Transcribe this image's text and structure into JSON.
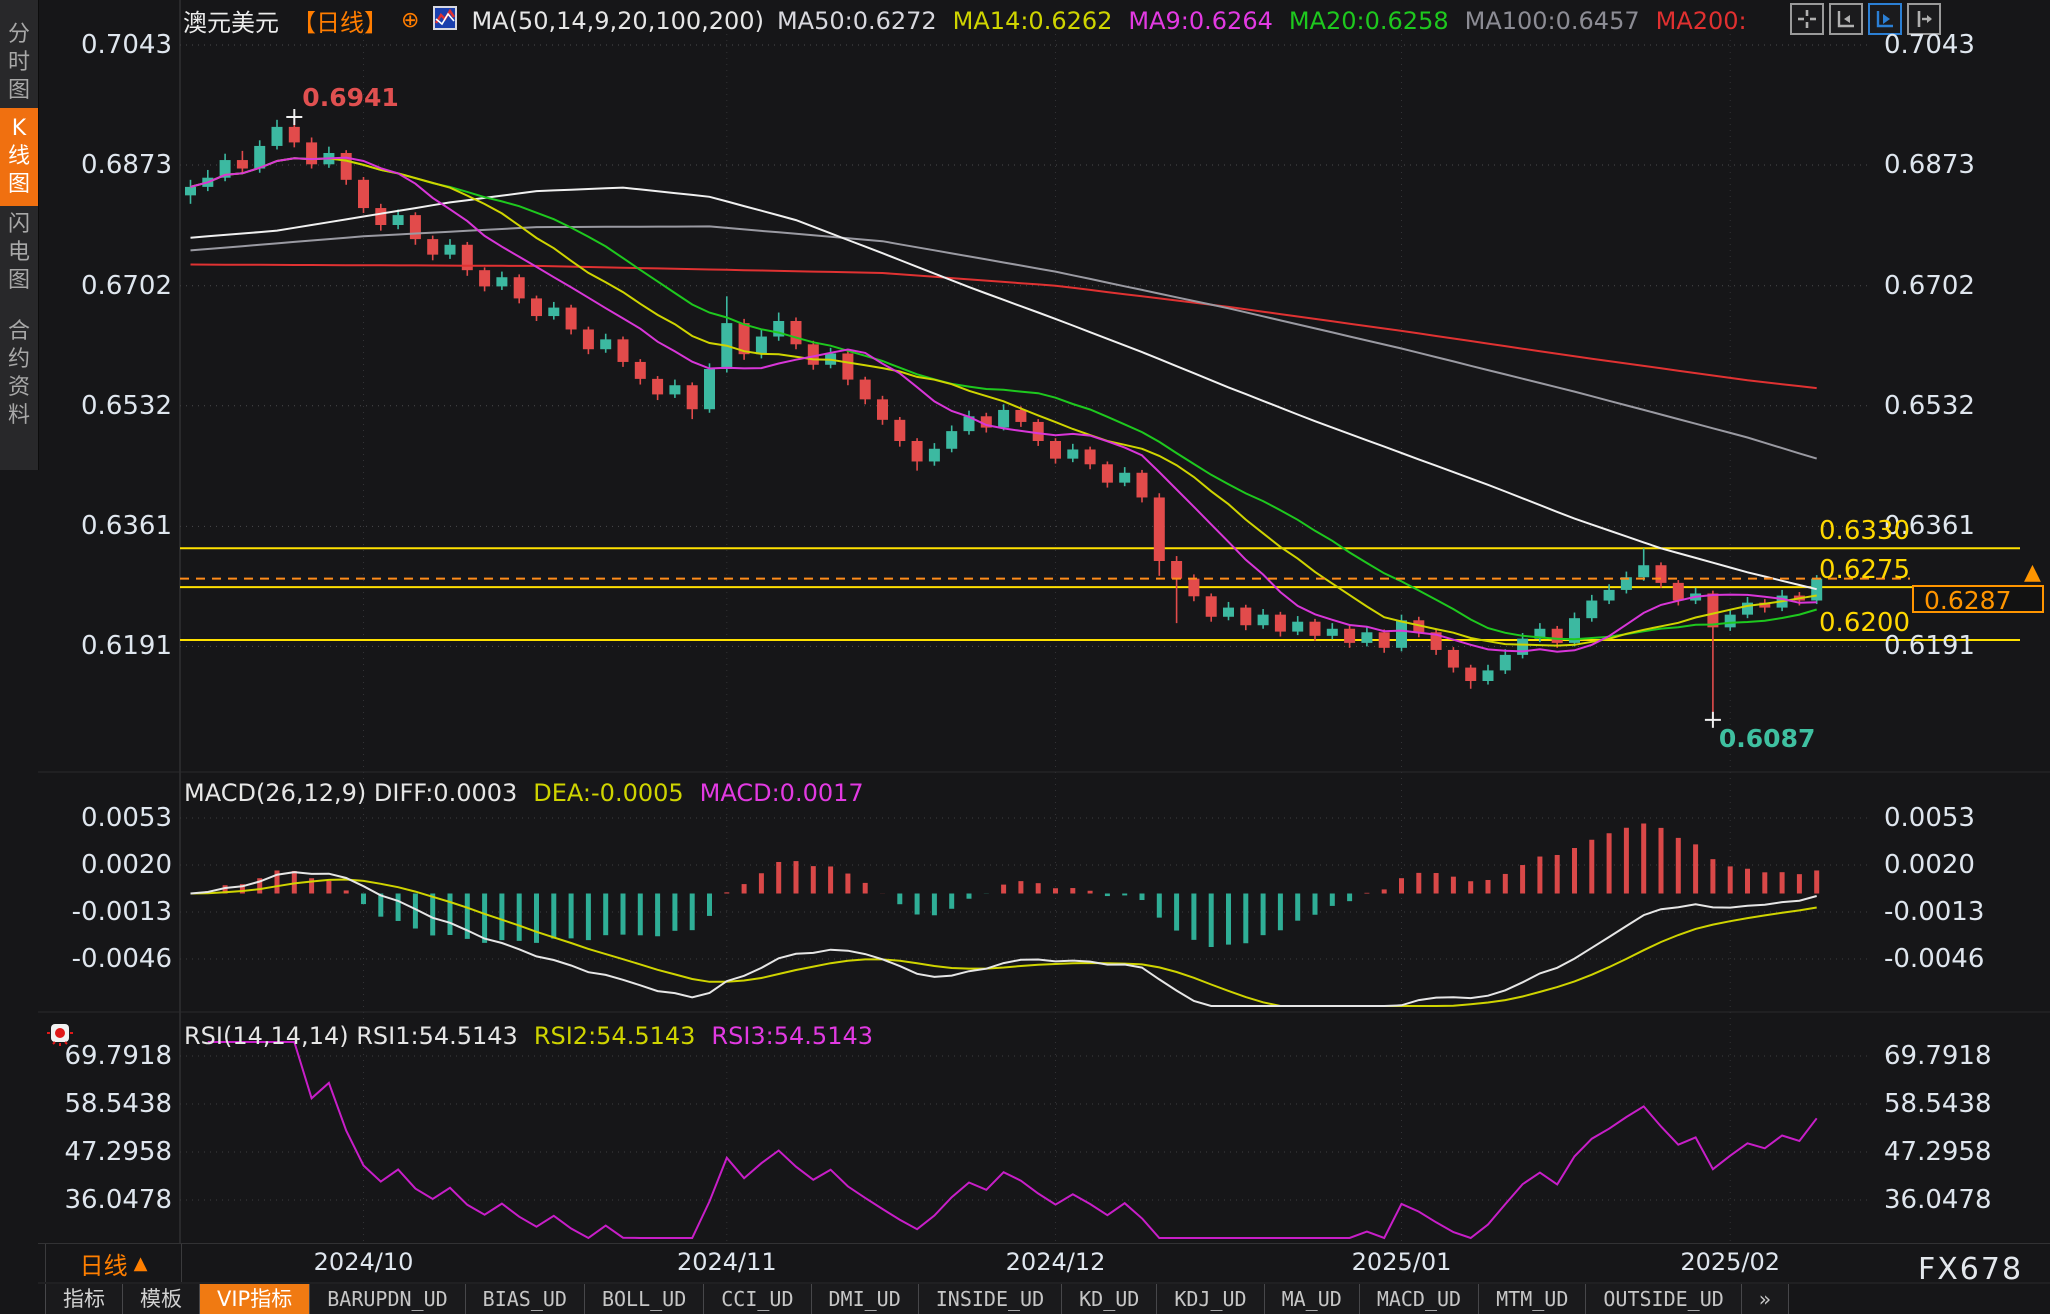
{
  "header": {
    "title": "澳元美元",
    "period_tag": "【日线】",
    "ma_params": "MA(50,14,9,20,100,200)",
    "ma_items": [
      {
        "text": "MA50:0.6272",
        "color": "#d8d8de"
      },
      {
        "text": "MA14:0.6262",
        "color": "#cfd400"
      },
      {
        "text": "MA9:0.6264",
        "color": "#e23ae2"
      },
      {
        "text": "MA20:0.6258",
        "color": "#1ec81e"
      },
      {
        "text": "MA100:0.6457",
        "color": "#8c8c94"
      },
      {
        "text": "MA200:",
        "color": "#e03030"
      }
    ],
    "axis_buttons": [
      "move-icon",
      "axis-left-icon",
      "axis-play-icon",
      "axis-right-icon"
    ],
    "active_axis_button": 2
  },
  "sidebar": {
    "items": [
      {
        "label": "分时图",
        "active": false
      },
      {
        "label": "K线图",
        "active": true
      },
      {
        "label": "闪电图",
        "active": false
      },
      {
        "label": "合约资料",
        "active": false
      }
    ],
    "active_color": "#f07010"
  },
  "macd_pane": {
    "label_main": "MACD(26,12,9) DIFF:0.0003",
    "label_dea": "DEA:-0.0005",
    "label_macd": "MACD:0.0017",
    "colors": {
      "main": "#e6e6e6",
      "dea": "#cfd400",
      "macd": "#e23ae2"
    }
  },
  "rsi_pane": {
    "label_main": "RSI(14,14,14) RSI1:54.5143",
    "label_2": "RSI2:54.5143",
    "label_3": "RSI3:54.5143",
    "colors": {
      "main": "#e6e6e6",
      "r2": "#cfd400",
      "r3": "#e23ae2"
    }
  },
  "xaxis": {
    "period_label": "日线",
    "period_arrow": "▲"
  },
  "price_tag": {
    "value": "0.6287",
    "color": "#ff9500",
    "arrow": "▲"
  },
  "toolbar": {
    "tabs": [
      {
        "label": "指标",
        "mono": false,
        "active": false
      },
      {
        "label": "模板",
        "mono": false,
        "active": false
      },
      {
        "label": "VIP指标",
        "mono": false,
        "active": true
      },
      {
        "label": "BARUPDN_UD",
        "mono": true,
        "active": false
      },
      {
        "label": "BIAS_UD",
        "mono": true,
        "active": false
      },
      {
        "label": "BOLL_UD",
        "mono": true,
        "active": false
      },
      {
        "label": "CCI_UD",
        "mono": true,
        "active": false
      },
      {
        "label": "DMI_UD",
        "mono": true,
        "active": false
      },
      {
        "label": "INSIDE_UD",
        "mono": true,
        "active": false
      },
      {
        "label": "KD_UD",
        "mono": true,
        "active": false
      },
      {
        "label": "KDJ_UD",
        "mono": true,
        "active": false
      },
      {
        "label": "MA_UD",
        "mono": true,
        "active": false
      },
      {
        "label": "MACD_UD",
        "mono": true,
        "active": false
      },
      {
        "label": "MTM_UD",
        "mono": true,
        "active": false
      },
      {
        "label": "OUTSIDE_UD",
        "mono": true,
        "active": false
      },
      {
        "label": "»",
        "mono": true,
        "active": false
      }
    ]
  },
  "watermark": "FX678",
  "chart_data": {
    "type": "candlestick",
    "title": "澳元美元 日线",
    "up_color": "#3cb9a1",
    "down_color": "#e24b4b",
    "y_ticks_main": [
      {
        "label": "0.7043",
        "price": 0.7043
      },
      {
        "label": "0.6873",
        "price": 0.6873
      },
      {
        "label": "0.6702",
        "price": 0.6702
      },
      {
        "label": "0.6532",
        "price": 0.6532
      },
      {
        "label": "0.6361",
        "price": 0.6361
      },
      {
        "label": "0.6191",
        "price": 0.6191
      }
    ],
    "x_labels": [
      {
        "label": "2024/10",
        "index": 10
      },
      {
        "label": "2024/11",
        "index": 31
      },
      {
        "label": "2024/12",
        "index": 50
      },
      {
        "label": "2025/01",
        "index": 70
      },
      {
        "label": "2025/02",
        "index": 89
      }
    ],
    "levels": [
      {
        "label": "0.6330",
        "price": 0.633
      },
      {
        "label": "0.6275",
        "price": 0.6275
      },
      {
        "label": "0.6200",
        "price": 0.62
      }
    ],
    "current_price": {
      "label": "0.6287",
      "price": 0.6287
    },
    "annotations": {
      "high": {
        "index": 6,
        "price": 0.6941,
        "label": "0.6941",
        "color": "#e05050"
      },
      "low": {
        "index": 88,
        "price": 0.6087,
        "label": "0.6087",
        "color": "#3fc0a0"
      }
    },
    "candles": [
      [
        0.683,
        0.6852,
        0.6818,
        0.6842
      ],
      [
        0.6842,
        0.6866,
        0.6836,
        0.6855
      ],
      [
        0.6855,
        0.6889,
        0.685,
        0.688
      ],
      [
        0.688,
        0.6893,
        0.686,
        0.6868
      ],
      [
        0.6868,
        0.6908,
        0.6862,
        0.69
      ],
      [
        0.69,
        0.6937,
        0.6895,
        0.6927
      ],
      [
        0.6927,
        0.6941,
        0.6898,
        0.6905
      ],
      [
        0.6905,
        0.6912,
        0.6868,
        0.6874
      ],
      [
        0.6874,
        0.6899,
        0.6869,
        0.689
      ],
      [
        0.689,
        0.6894,
        0.6845,
        0.6852
      ],
      [
        0.6852,
        0.6856,
        0.6805,
        0.6812
      ],
      [
        0.6812,
        0.6818,
        0.678,
        0.6788
      ],
      [
        0.6788,
        0.681,
        0.6782,
        0.6802
      ],
      [
        0.6802,
        0.6806,
        0.676,
        0.6768
      ],
      [
        0.6768,
        0.6773,
        0.6738,
        0.6746
      ],
      [
        0.6746,
        0.6768,
        0.674,
        0.676
      ],
      [
        0.676,
        0.6764,
        0.6716,
        0.6724
      ],
      [
        0.6724,
        0.6728,
        0.6694,
        0.6701
      ],
      [
        0.6701,
        0.6722,
        0.6696,
        0.6714
      ],
      [
        0.6714,
        0.6718,
        0.6677,
        0.6684
      ],
      [
        0.6684,
        0.6688,
        0.6652,
        0.6659
      ],
      [
        0.6659,
        0.6679,
        0.6654,
        0.6671
      ],
      [
        0.6671,
        0.6675,
        0.6633,
        0.664
      ],
      [
        0.664,
        0.6644,
        0.6605,
        0.6612
      ],
      [
        0.6612,
        0.6634,
        0.6607,
        0.6626
      ],
      [
        0.6626,
        0.663,
        0.6587,
        0.6594
      ],
      [
        0.6594,
        0.6598,
        0.6562,
        0.657
      ],
      [
        0.657,
        0.6574,
        0.654,
        0.6548
      ],
      [
        0.6548,
        0.6569,
        0.6543,
        0.6561
      ],
      [
        0.6561,
        0.6565,
        0.6513,
        0.6527
      ],
      [
        0.6527,
        0.6592,
        0.6522,
        0.6584
      ],
      [
        0.6584,
        0.6687,
        0.6579,
        0.6649
      ],
      [
        0.6649,
        0.6655,
        0.6597,
        0.6605
      ],
      [
        0.6605,
        0.6641,
        0.6599,
        0.663
      ],
      [
        0.663,
        0.6664,
        0.6624,
        0.6652
      ],
      [
        0.6652,
        0.6657,
        0.6612,
        0.6619
      ],
      [
        0.6619,
        0.6624,
        0.6583,
        0.659
      ],
      [
        0.659,
        0.6614,
        0.6585,
        0.6606
      ],
      [
        0.6606,
        0.661,
        0.6561,
        0.6569
      ],
      [
        0.6569,
        0.6573,
        0.6534,
        0.6541
      ],
      [
        0.6541,
        0.6546,
        0.6505,
        0.6512
      ],
      [
        0.6512,
        0.6516,
        0.6474,
        0.6482
      ],
      [
        0.6482,
        0.6486,
        0.644,
        0.6453
      ],
      [
        0.6453,
        0.6479,
        0.6447,
        0.6471
      ],
      [
        0.6471,
        0.6504,
        0.6466,
        0.6496
      ],
      [
        0.6496,
        0.6525,
        0.6491,
        0.6517
      ],
      [
        0.6517,
        0.6522,
        0.6494,
        0.6501
      ],
      [
        0.6501,
        0.6534,
        0.6497,
        0.6526
      ],
      [
        0.6526,
        0.6531,
        0.6502,
        0.6509
      ],
      [
        0.6509,
        0.6513,
        0.6475,
        0.6482
      ],
      [
        0.6482,
        0.6486,
        0.645,
        0.6457
      ],
      [
        0.6457,
        0.6478,
        0.6452,
        0.647
      ],
      [
        0.647,
        0.6474,
        0.6442,
        0.6449
      ],
      [
        0.6449,
        0.6453,
        0.6416,
        0.6423
      ],
      [
        0.6423,
        0.6445,
        0.6418,
        0.6437
      ],
      [
        0.6437,
        0.6441,
        0.6395,
        0.6402
      ],
      [
        0.6402,
        0.6408,
        0.6291,
        0.6312
      ],
      [
        0.6312,
        0.6319,
        0.6224,
        0.6287
      ],
      [
        0.6287,
        0.6293,
        0.6255,
        0.6262
      ],
      [
        0.6262,
        0.6266,
        0.6226,
        0.6233
      ],
      [
        0.6233,
        0.6254,
        0.6228,
        0.6246
      ],
      [
        0.6246,
        0.625,
        0.6214,
        0.6221
      ],
      [
        0.6221,
        0.6244,
        0.6216,
        0.6236
      ],
      [
        0.6236,
        0.624,
        0.6205,
        0.6212
      ],
      [
        0.6212,
        0.6234,
        0.6207,
        0.6226
      ],
      [
        0.6226,
        0.623,
        0.6199,
        0.6206
      ],
      [
        0.6206,
        0.6224,
        0.6201,
        0.6216
      ],
      [
        0.6216,
        0.622,
        0.6189,
        0.6196
      ],
      [
        0.6196,
        0.6219,
        0.6191,
        0.6211
      ],
      [
        0.6211,
        0.6215,
        0.6182,
        0.6189
      ],
      [
        0.6189,
        0.6236,
        0.6184,
        0.6228
      ],
      [
        0.6228,
        0.6233,
        0.6204,
        0.6211
      ],
      [
        0.6211,
        0.6215,
        0.6179,
        0.6186
      ],
      [
        0.6186,
        0.619,
        0.6154,
        0.6161
      ],
      [
        0.6161,
        0.6165,
        0.6131,
        0.6142
      ],
      [
        0.6142,
        0.6165,
        0.6137,
        0.6157
      ],
      [
        0.6157,
        0.6187,
        0.6152,
        0.6179
      ],
      [
        0.6179,
        0.621,
        0.6174,
        0.6202
      ],
      [
        0.6202,
        0.6224,
        0.6197,
        0.6216
      ],
      [
        0.6216,
        0.622,
        0.6189,
        0.6196
      ],
      [
        0.6196,
        0.6239,
        0.6191,
        0.6231
      ],
      [
        0.6231,
        0.6264,
        0.6226,
        0.6256
      ],
      [
        0.6256,
        0.6279,
        0.6251,
        0.6271
      ],
      [
        0.6271,
        0.6297,
        0.6266,
        0.6289
      ],
      [
        0.6289,
        0.633,
        0.6284,
        0.6306
      ],
      [
        0.6306,
        0.631,
        0.6274,
        0.6281
      ],
      [
        0.6281,
        0.6285,
        0.6249,
        0.6256
      ],
      [
        0.6256,
        0.6274,
        0.6251,
        0.6266
      ],
      [
        0.6266,
        0.627,
        0.6087,
        0.6218
      ],
      [
        0.6218,
        0.6244,
        0.6213,
        0.6236
      ],
      [
        0.6236,
        0.6261,
        0.6231,
        0.6253
      ],
      [
        0.6253,
        0.6258,
        0.6239,
        0.6246
      ],
      [
        0.6246,
        0.6271,
        0.6241,
        0.6263
      ],
      [
        0.6263,
        0.6268,
        0.6249,
        0.6256
      ],
      [
        0.6256,
        0.6292,
        0.6251,
        0.6287
      ]
    ],
    "ma_overlays": [
      {
        "name": "MA200",
        "color": "#e03232",
        "points": [
          [
            0,
            0.6732
          ],
          [
            20,
            0.673
          ],
          [
            40,
            0.672
          ],
          [
            50,
            0.6702
          ],
          [
            60,
            0.6672
          ],
          [
            70,
            0.6638
          ],
          [
            80,
            0.6602
          ],
          [
            90,
            0.6568
          ],
          [
            94,
            0.6557
          ]
        ]
      },
      {
        "name": "MA100",
        "color": "#9a9aa2",
        "points": [
          [
            0,
            0.6752
          ],
          [
            10,
            0.6772
          ],
          [
            20,
            0.6785
          ],
          [
            30,
            0.6786
          ],
          [
            40,
            0.6765
          ],
          [
            50,
            0.6722
          ],
          [
            60,
            0.667
          ],
          [
            70,
            0.6613
          ],
          [
            80,
            0.6552
          ],
          [
            90,
            0.6487
          ],
          [
            94,
            0.6457
          ]
        ]
      },
      {
        "name": "MA50",
        "color": "#f0f0f0",
        "points": [
          [
            0,
            0.677
          ],
          [
            5,
            0.678
          ],
          [
            10,
            0.68
          ],
          [
            15,
            0.682
          ],
          [
            20,
            0.6836
          ],
          [
            25,
            0.6841
          ],
          [
            30,
            0.6828
          ],
          [
            35,
            0.6795
          ],
          [
            40,
            0.6748
          ],
          [
            45,
            0.67
          ],
          [
            50,
            0.6655
          ],
          [
            55,
            0.6608
          ],
          [
            60,
            0.6558
          ],
          [
            65,
            0.651
          ],
          [
            70,
            0.6465
          ],
          [
            75,
            0.642
          ],
          [
            80,
            0.6372
          ],
          [
            85,
            0.633
          ],
          [
            90,
            0.6296
          ],
          [
            94,
            0.6272
          ]
        ]
      }
    ],
    "fast_ma": [
      {
        "name": "MA20",
        "period": 20,
        "color": "#1ec81e"
      },
      {
        "name": "MA14",
        "period": 14,
        "color": "#cfd400"
      },
      {
        "name": "MA9",
        "period": 9,
        "color": "#d836d8"
      }
    ],
    "macd": {
      "params": [
        26,
        12,
        9
      ],
      "up_color": "#d94848",
      "down_color": "#2fae96",
      "diff_color": "#e6e6e6",
      "dea_color": "#cfd400",
      "ticks": [
        {
          "label": "0.0053",
          "value": 0.0053
        },
        {
          "label": "0.0020",
          "value": 0.002
        },
        {
          "label": "-0.0013",
          "value": -0.0013
        },
        {
          "label": "-0.0046",
          "value": -0.0046
        }
      ]
    },
    "rsi": {
      "period": 14,
      "color": "#c81ec8",
      "ticks": [
        {
          "label": "69.7918",
          "value": 69.7918
        },
        {
          "label": "58.5438",
          "value": 58.5438
        },
        {
          "label": "47.2958",
          "value": 47.2958
        },
        {
          "label": "36.0478",
          "value": 36.0478
        }
      ]
    }
  }
}
